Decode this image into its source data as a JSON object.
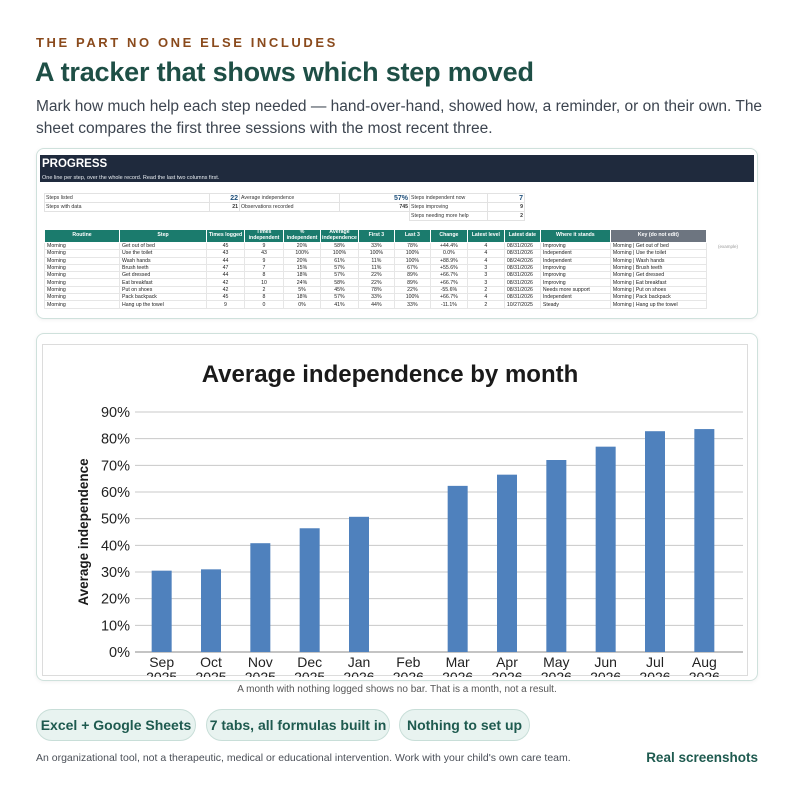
{
  "eyebrow": "THE PART NO ONE ELSE INCLUDES",
  "headline": "A tracker that shows which step moved",
  "lede": "Mark how much help each step needed — hand-over-hand, showed how, a reminder, or on their own. The sheet compares the first three sessions with the most recent three.",
  "sheet": {
    "title": "PROGRESS",
    "subtitle": "One line per step, over the whole record. Read the last two columns first.",
    "stats": {
      "steps_listed_label": "Steps listed",
      "steps_listed": "22",
      "steps_with_data_label": "Steps with data",
      "steps_with_data": "21",
      "avg_indep_label": "Average independence",
      "avg_indep": "57%",
      "obs_label": "Observations recorded",
      "obs": "745",
      "indep_now_label": "Steps independent now",
      "indep_now": "7",
      "improving_label": "Steps improving",
      "improving": "9",
      "more_help_label": "Steps needing more help",
      "more_help": "2"
    },
    "columns": [
      "Routine",
      "Step",
      "Times logged",
      "Times independent",
      "% independent",
      "Average independence",
      "First 3",
      "Last 3",
      "Change",
      "Latest level",
      "Latest date",
      "Where it stands",
      "Key (do not edit)"
    ],
    "example_note": "(example)",
    "rows": [
      [
        "Morning",
        "Get out of bed",
        "45",
        "9",
        "20%",
        "58%",
        "33%",
        "78%",
        "+44.4%",
        "4",
        "08/31/2026",
        "Improving",
        "Morning | Get out of bed"
      ],
      [
        "Morning",
        "Use the toilet",
        "43",
        "43",
        "100%",
        "100%",
        "100%",
        "100%",
        "0.0%",
        "4",
        "08/31/2026",
        "Independent",
        "Morning | Use the toilet"
      ],
      [
        "Morning",
        "Wash hands",
        "44",
        "9",
        "20%",
        "61%",
        "11%",
        "100%",
        "+88.9%",
        "4",
        "08/24/2026",
        "Independent",
        "Morning | Wash hands"
      ],
      [
        "Morning",
        "Brush teeth",
        "47",
        "7",
        "15%",
        "57%",
        "11%",
        "67%",
        "+55.6%",
        "3",
        "08/31/2026",
        "Improving",
        "Morning | Brush teeth"
      ],
      [
        "Morning",
        "Get dressed",
        "44",
        "8",
        "18%",
        "57%",
        "22%",
        "89%",
        "+66.7%",
        "3",
        "08/31/2026",
        "Improving",
        "Morning | Get dressed"
      ],
      [
        "Morning",
        "Eat breakfast",
        "42",
        "10",
        "24%",
        "58%",
        "22%",
        "89%",
        "+66.7%",
        "3",
        "08/31/2026",
        "Improving",
        "Morning | Eat breakfast"
      ],
      [
        "Morning",
        "Put on shoes",
        "42",
        "2",
        "5%",
        "45%",
        "78%",
        "22%",
        "-55.6%",
        "2",
        "08/31/2026",
        "Needs more support",
        "Morning | Put on shoes"
      ],
      [
        "Morning",
        "Pack backpack",
        "45",
        "8",
        "18%",
        "57%",
        "33%",
        "100%",
        "+66.7%",
        "4",
        "08/31/2026",
        "Independent",
        "Morning | Pack backpack"
      ],
      [
        "Morning",
        "Hang up the towel",
        "9",
        "0",
        "0%",
        "41%",
        "44%",
        "33%",
        "-11.1%",
        "2",
        "10/27/2025",
        "Steady",
        "Morning | Hang up the towel"
      ]
    ]
  },
  "chart_data": {
    "type": "bar",
    "title": "Average independence by month",
    "xlabel": "",
    "ylabel": "Average independence",
    "categories": [
      "Sep 2025",
      "Oct 2025",
      "Nov 2025",
      "Dec 2025",
      "Jan 2026",
      "Feb 2026",
      "Mar 2026",
      "Apr 2026",
      "May 2026",
      "Jun 2026",
      "Jul 2026",
      "Aug 2026"
    ],
    "values": [
      30.5,
      31,
      40.8,
      46.4,
      50.7,
      null,
      62.3,
      66.5,
      72,
      77,
      82.8,
      83.6
    ],
    "ylim": [
      0,
      90
    ],
    "yticks": [
      "0%",
      "10%",
      "20%",
      "30%",
      "40%",
      "50%",
      "60%",
      "70%",
      "80%",
      "90%"
    ],
    "grid": true,
    "bar_color": "#4f81bd"
  },
  "chart_caption": "A month with nothing logged shows no bar. That is a month, not a result.",
  "pills": [
    "Excel + Google Sheets",
    "7 tabs, all formulas built in",
    "Nothing to set up"
  ],
  "disclaimer": "An organizational tool, not a therapeutic, medical or educational intervention. Work with your child's own care team.",
  "real_screenshots": "Real screenshots"
}
